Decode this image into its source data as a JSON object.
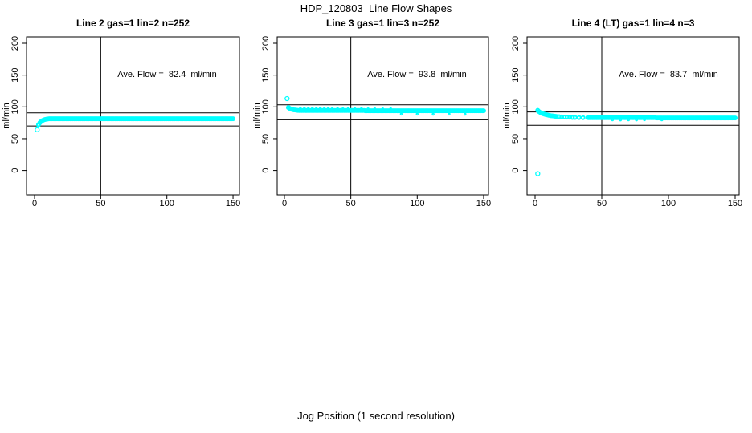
{
  "chart_data": {
    "type": "scatter",
    "title": "HDP_120803  Line Flow Shapes",
    "xlabel": "Jog Position (1 second resolution)",
    "ylabel": "ml/min",
    "x_ticks": [
      0,
      50,
      100,
      150
    ],
    "y_ticks": [
      0,
      50,
      100,
      150,
      200
    ],
    "xlim": [
      0,
      150
    ],
    "ylim": [
      0,
      200
    ],
    "grid": false,
    "legend": "none",
    "point_color": "#00FFFF",
    "line_color": "#000000",
    "background": "#FFFFFF",
    "panels": [
      {
        "title": "Line 2 gas=1 lin=2 n=252",
        "ave_flow": 82.4,
        "annotation": "Ave. Flow =  82.4  ml/min",
        "h_ref_lines": [
          90.6,
          70.0
        ],
        "v_ref_line": 50,
        "outliers": [
          [
            2,
            64
          ]
        ],
        "lead_points": [
          [
            3,
            72
          ],
          [
            4,
            75
          ],
          [
            5,
            77
          ],
          [
            6,
            78.5
          ],
          [
            7,
            79.5
          ],
          [
            8,
            80.2
          ],
          [
            9,
            80.7
          ],
          [
            10,
            81
          ]
        ],
        "flat_segments": [
          {
            "from": 11,
            "to": 150,
            "step": 1,
            "y": 81.3
          }
        ],
        "speckle": []
      },
      {
        "title": "Line 3 gas=1 lin=3 n=252",
        "ave_flow": 93.8,
        "annotation": "Ave. Flow =  93.8  ml/min",
        "h_ref_lines": [
          103.2,
          79.7
        ],
        "v_ref_line": 50,
        "outliers": [
          [
            2,
            113
          ]
        ],
        "lead_points": [
          [
            3,
            99
          ],
          [
            4,
            97.5
          ],
          [
            5,
            96.5
          ],
          [
            6,
            95.9
          ],
          [
            7,
            95.4
          ],
          [
            8,
            95.1
          ],
          [
            9,
            94.8
          ],
          [
            10,
            94.6
          ]
        ],
        "flat_segments": [
          {
            "from": 11,
            "to": 60,
            "step": 1,
            "y": 94.4
          },
          {
            "from": 61,
            "to": 150,
            "step": 1,
            "y": 93.9
          }
        ],
        "speckle": [
          [
            12,
            97.5
          ],
          [
            15,
            97.6
          ],
          [
            18,
            97.4
          ],
          [
            21,
            97.6
          ],
          [
            24,
            97.3
          ],
          [
            27,
            97.5
          ],
          [
            30,
            97.2
          ],
          [
            33,
            97.4
          ],
          [
            36,
            97.2
          ],
          [
            40,
            97.3
          ],
          [
            44,
            97.1
          ],
          [
            48,
            97.3
          ],
          [
            53,
            97.0
          ],
          [
            58,
            97.2
          ],
          [
            63,
            96.9
          ],
          [
            68,
            97.1
          ],
          [
            74,
            96.9
          ],
          [
            80,
            97.0
          ],
          [
            88,
            88.5
          ],
          [
            100,
            88.6
          ],
          [
            112,
            88.4
          ],
          [
            124,
            88.6
          ],
          [
            136,
            88.4
          ]
        ]
      },
      {
        "title": "Line 4 (LT) gas=1 lin=4 n=3",
        "ave_flow": 83.7,
        "annotation": "Ave. Flow =  83.7  ml/min",
        "h_ref_lines": [
          92.1,
          71.1
        ],
        "v_ref_line": 50,
        "outliers": [
          [
            2,
            -5
          ]
        ],
        "lead_points": [
          [
            2,
            94.5
          ],
          [
            3,
            92.5
          ],
          [
            4,
            91
          ],
          [
            5,
            90
          ],
          [
            6,
            89.2
          ],
          [
            7,
            88.5
          ],
          [
            8,
            87.9
          ],
          [
            9,
            87.4
          ],
          [
            10,
            86.9
          ],
          [
            11,
            86.5
          ],
          [
            12,
            86.1
          ],
          [
            13,
            85.8
          ],
          [
            14,
            85.5
          ],
          [
            15,
            85.2
          ],
          [
            16,
            85
          ],
          [
            18,
            84.6
          ],
          [
            20,
            84.3
          ],
          [
            22,
            84
          ],
          [
            24,
            83.8
          ],
          [
            26,
            83.6
          ],
          [
            28,
            83.4
          ],
          [
            30,
            83.3
          ],
          [
            33,
            83.2
          ],
          [
            36,
            83.1
          ],
          [
            40,
            83
          ]
        ],
        "flat_segments": [
          {
            "from": 41,
            "to": 90,
            "step": 1,
            "y": 83.0
          },
          {
            "from": 91,
            "to": 150,
            "step": 1,
            "y": 82.6
          }
        ],
        "speckle": [
          [
            58,
            79.5
          ],
          [
            64,
            79.4
          ],
          [
            70,
            79.6
          ],
          [
            76,
            79.4
          ],
          [
            82,
            79.7
          ],
          [
            95,
            79.5
          ]
        ]
      }
    ]
  }
}
